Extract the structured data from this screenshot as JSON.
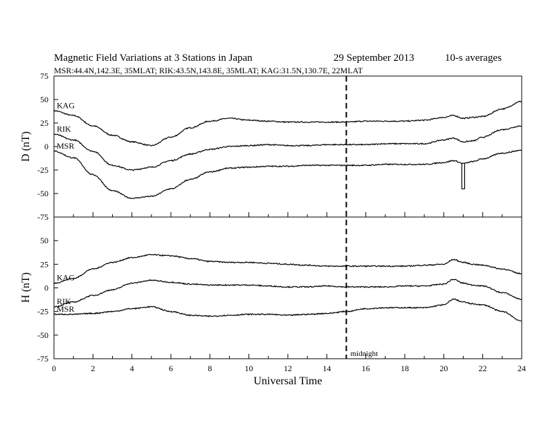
{
  "header": {
    "title": "Magnetic Field Variations at 3 Stations in Japan",
    "date": "29 September 2013",
    "averaging": "10-s averages",
    "stations_line": "MSR:44.4N,142.3E, 35MLAT;  RIK:43.5N,143.8E, 35MLAT;  KAG:31.5N,130.7E, 22MLAT"
  },
  "chart_data": [
    {
      "type": "line",
      "panel": "D",
      "ylabel": "D (nT)",
      "xlabel": "",
      "xlim": [
        0,
        24
      ],
      "ylim": [
        -75,
        75
      ],
      "yticks": [
        75,
        50,
        25,
        0,
        -25,
        -50,
        -75
      ],
      "x": [
        0,
        1,
        2,
        3,
        4,
        5,
        6,
        7,
        8,
        9,
        10,
        11,
        12,
        13,
        14,
        15,
        16,
        17,
        18,
        19,
        20,
        20.5,
        21,
        21.5,
        22,
        23,
        24
      ],
      "series": [
        {
          "name": "KAG",
          "values": [
            38,
            33,
            22,
            12,
            5,
            1,
            10,
            20,
            27,
            30,
            28,
            27,
            26,
            26,
            26,
            26,
            27,
            27,
            27,
            28,
            31,
            33,
            30,
            31,
            32,
            40,
            48
          ]
        },
        {
          "name": "RIK",
          "values": [
            13,
            7,
            -5,
            -20,
            -25,
            -22,
            -15,
            -8,
            -3,
            0,
            1,
            2,
            1,
            1,
            2,
            2,
            2,
            3,
            3,
            3,
            7,
            9,
            5,
            6,
            10,
            18,
            22
          ]
        },
        {
          "name": "MSR",
          "values": [
            -5,
            -12,
            -30,
            -47,
            -55,
            -53,
            -45,
            -35,
            -27,
            -23,
            -22,
            -21,
            -21,
            -20,
            -20,
            -20,
            -20,
            -19,
            -19,
            -19,
            -17,
            -15,
            -18,
            -16,
            -13,
            -7,
            -4
          ]
        }
      ],
      "annotations": [
        {
          "type": "spike",
          "series": "MSR",
          "x": 21,
          "min": -45
        }
      ]
    },
    {
      "type": "line",
      "panel": "H",
      "ylabel": "H (nT)",
      "xlabel": "Universal Time",
      "xlim": [
        0,
        24
      ],
      "ylim": [
        -75,
        75
      ],
      "xticks": [
        0,
        2,
        4,
        6,
        8,
        10,
        12,
        14,
        16,
        18,
        20,
        22,
        24
      ],
      "yticks": [
        50,
        25,
        0,
        -25,
        -50,
        -75
      ],
      "x": [
        0,
        1,
        2,
        3,
        4,
        5,
        6,
        7,
        8,
        9,
        10,
        11,
        12,
        13,
        14,
        15,
        16,
        17,
        18,
        19,
        20,
        20.5,
        21,
        21.5,
        22,
        23,
        24
      ],
      "series": [
        {
          "name": "KAG",
          "values": [
            5,
            10,
            20,
            27,
            32,
            35,
            34,
            31,
            28,
            27,
            27,
            26,
            25,
            24,
            23,
            23,
            23,
            23,
            23,
            24,
            25,
            30,
            27,
            25,
            24,
            20,
            15
          ]
        },
        {
          "name": "RIK",
          "values": [
            -20,
            -15,
            -8,
            -2,
            5,
            8,
            6,
            4,
            3,
            3,
            3,
            2,
            1,
            1,
            2,
            1,
            1,
            1,
            2,
            2,
            4,
            9,
            5,
            3,
            2,
            -5,
            -12
          ]
        },
        {
          "name": "MSR",
          "values": [
            -28,
            -28,
            -27,
            -25,
            -22,
            -20,
            -25,
            -29,
            -30,
            -29,
            -28,
            -28,
            -29,
            -28,
            -27,
            -25,
            -22,
            -21,
            -21,
            -21,
            -18,
            -12,
            -15,
            -17,
            -18,
            -25,
            -35
          ]
        }
      ],
      "annotations": [
        {
          "type": "vline",
          "x": 15,
          "label": "midnight"
        }
      ]
    }
  ]
}
